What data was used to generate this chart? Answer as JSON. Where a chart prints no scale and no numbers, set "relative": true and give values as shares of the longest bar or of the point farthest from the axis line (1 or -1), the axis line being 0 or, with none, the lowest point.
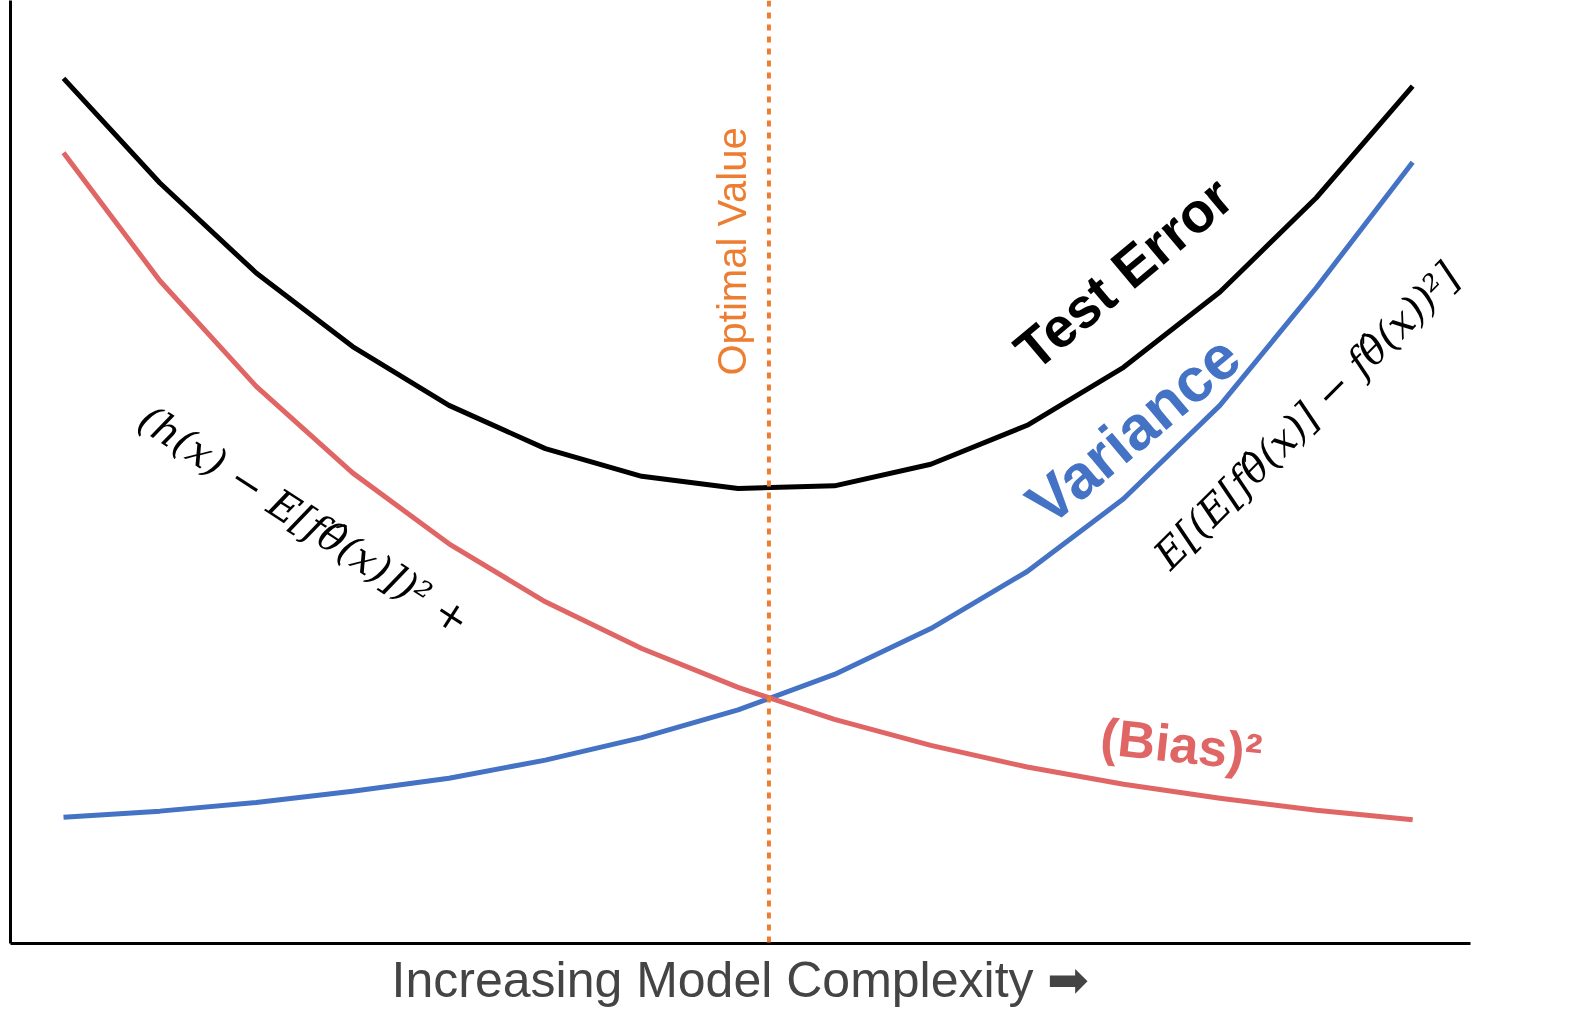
{
  "chart_data": {
    "type": "line",
    "relative": true,
    "xlabel": "Increasing Model Complexity ➡",
    "categories": [
      null,
      null,
      null,
      null,
      null,
      null,
      null,
      null,
      null,
      null,
      null,
      null,
      null,
      null,
      null
    ],
    "series": [
      {
        "name": "Test Error",
        "color": "#000000",
        "values": [
          1.0,
          0.879,
          0.775,
          0.69,
          0.622,
          0.572,
          0.54,
          0.526,
          0.529,
          0.554,
          0.599,
          0.666,
          0.753,
          0.862,
          0.991
        ]
      },
      {
        "name": "Variance",
        "color": "#4472c4",
        "values": [
          0.146,
          0.153,
          0.163,
          0.176,
          0.191,
          0.212,
          0.238,
          0.27,
          0.311,
          0.364,
          0.43,
          0.514,
          0.622,
          0.758,
          0.903
        ]
      },
      {
        "name": "(Bias)²",
        "color": "#e06666",
        "values": [
          0.914,
          0.766,
          0.644,
          0.544,
          0.462,
          0.395,
          0.341,
          0.296,
          0.259,
          0.229,
          0.204,
          0.184,
          0.168,
          0.154,
          0.143
        ]
      }
    ],
    "annotations": [
      "Optimal Value",
      "(h(x) − E[fθ̂(x)])² +",
      "E[(E[fθ̂(x)] − fθ̂(x))²]"
    ],
    "marker": "none",
    "line_style": "solid"
  }
}
